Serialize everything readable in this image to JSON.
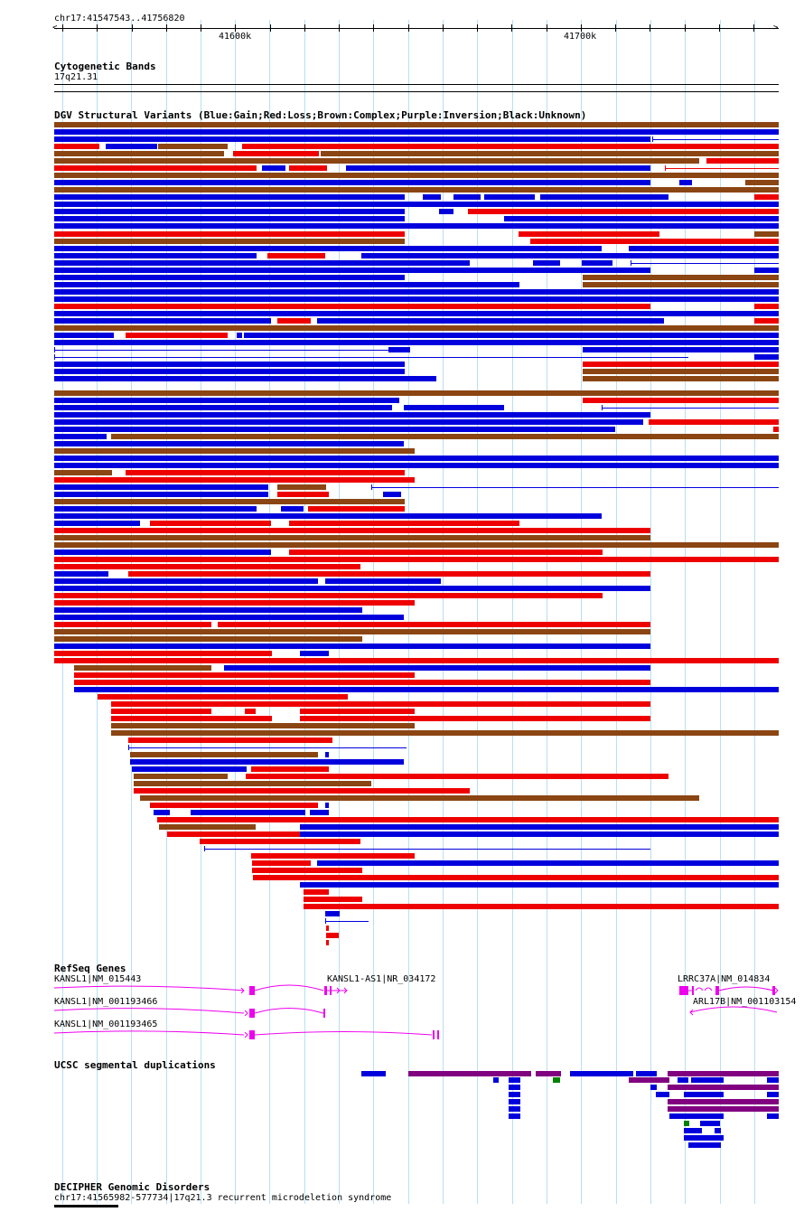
{
  "header": {
    "coords": "chr17:41547543..41756820",
    "tick_left": "41600k",
    "tick_right": "41700k"
  },
  "tracks": {
    "cytoband": {
      "title": "Cytogenetic Bands",
      "band": "17q21.31"
    },
    "dgv": {
      "title": "DGV Structural Variants (Blue:Gain;Red:Loss;Brown:Complex;Purple:Inversion;Black:Unknown)"
    },
    "refseq": {
      "title": "RefSeq Genes",
      "genes": [
        {
          "label": "KANSL1|NM_015443"
        },
        {
          "label": "KANSL1-AS1|NR_034172"
        },
        {
          "label": "LRRC37A|NM_014834"
        },
        {
          "label": "KANSL1|NM_001193466"
        },
        {
          "label": "ARL17B|NM_001103154"
        },
        {
          "label": "KANSL1|NM_001193465"
        }
      ]
    },
    "segdup": {
      "title": "UCSC segmental duplications"
    },
    "decipher": {
      "title": "DECIPHER Genomic Disorders",
      "item": "chr17:41565982-577734|17q21.3 recurrent microdeletion syndrome"
    }
  },
  "colors": {
    "gain": "#0000dd",
    "loss": "#ee0000",
    "complex": "#8b4513",
    "inversion": "#800080",
    "gene": "#ee00ee",
    "segdup_green": "#008000",
    "grid": "#b9dff0"
  }
}
